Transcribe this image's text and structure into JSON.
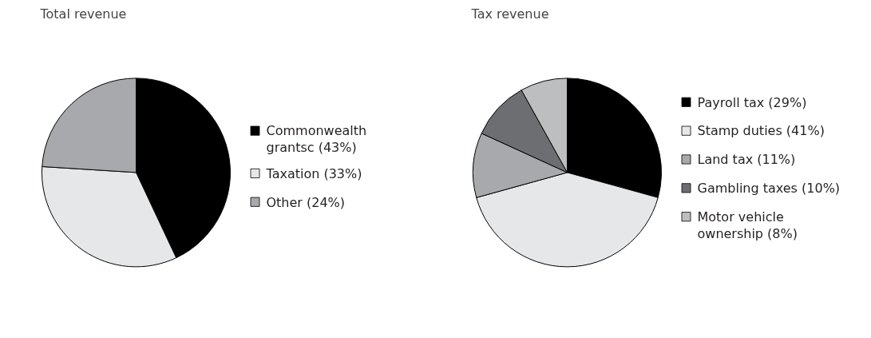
{
  "chart_data": [
    {
      "type": "pie",
      "title": "Total revenue",
      "legend": "right",
      "categories": [
        "Commonwealth\ngrantsc (43%)",
        "Taxation (33%)",
        "Other (24%)"
      ],
      "values": [
        43,
        33,
        24
      ],
      "colors": [
        "#000000",
        "#e6e7e8",
        "#a7a9ac"
      ]
    },
    {
      "type": "pie",
      "title": "Tax revenue",
      "legend": "right",
      "categories": [
        "Payroll tax (29%)",
        "Stamp duties (41%)",
        "Land tax (11%)",
        "Gambling taxes (10%)",
        "Motor vehicle\nownership (8%)"
      ],
      "values": [
        29,
        41,
        11,
        10,
        8
      ],
      "colors": [
        "#000000",
        "#e6e7e8",
        "#a7a9ac",
        "#6d6e71",
        "#bcbec0"
      ]
    }
  ]
}
